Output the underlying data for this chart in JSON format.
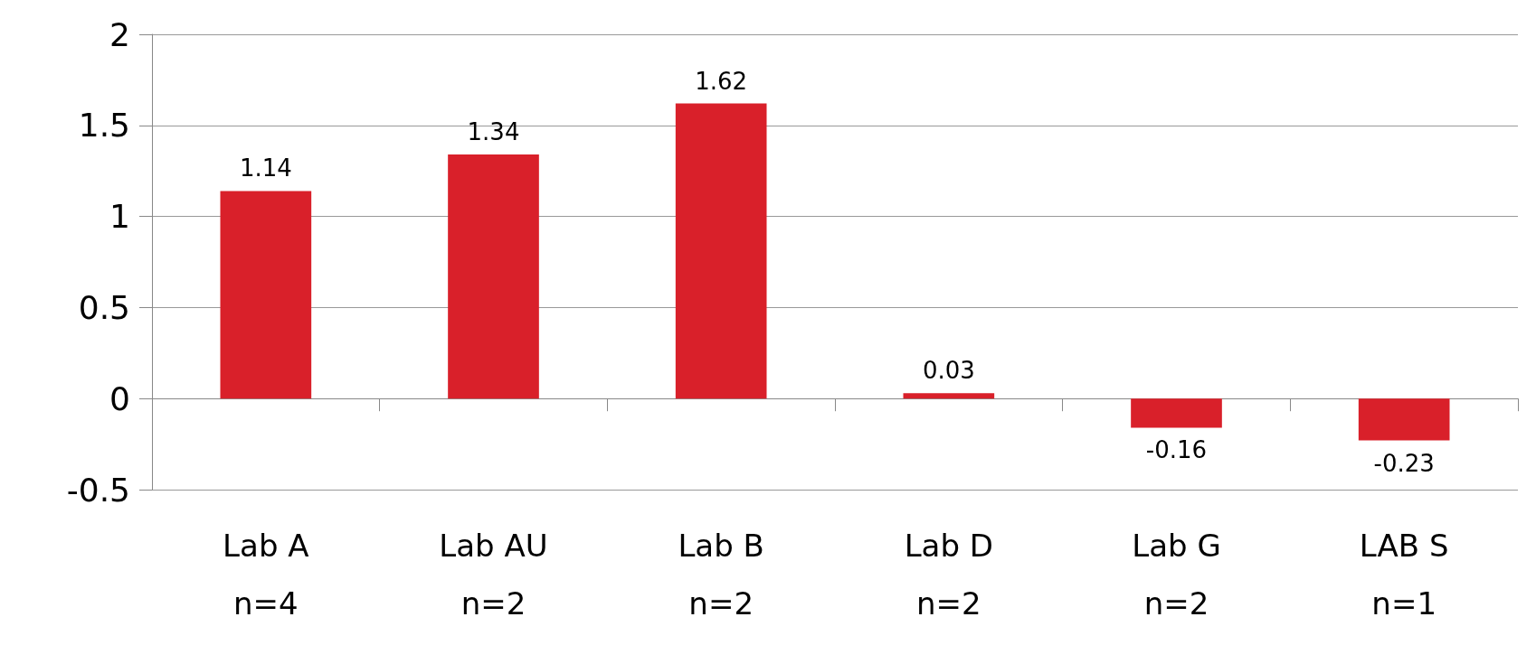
{
  "chart_data": {
    "type": "bar",
    "categories": [
      "Lab A\nn=4",
      "Lab AU\nn=2",
      "Lab B\nn=2",
      "Lab D\nn=2",
      "Lab G\nn=2",
      "LAB S\nn=1"
    ],
    "values": [
      1.14,
      1.34,
      1.62,
      0.03,
      -0.16,
      -0.23
    ],
    "color": "#d9202a",
    "ylim": [
      -0.5,
      2
    ],
    "yticks": [
      -0.5,
      0,
      0.5,
      1,
      1.5,
      2
    ],
    "grid": "y",
    "data_labels": true
  }
}
